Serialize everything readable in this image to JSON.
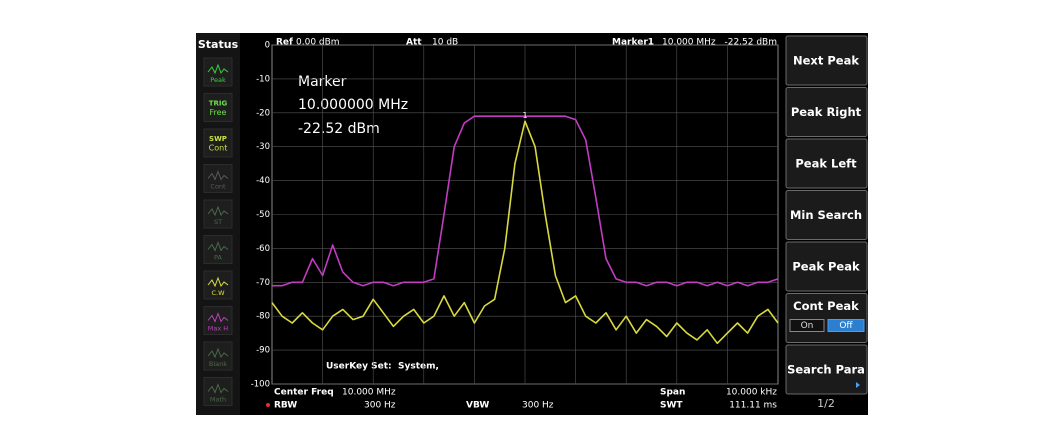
{
  "status": {
    "title": "Status",
    "items": [
      {
        "label": "Peak",
        "color": "#3ad13a"
      },
      {
        "top": "TRIG",
        "label": "Free",
        "color": "#6ee04a"
      },
      {
        "top": "SWP",
        "label": "Cont",
        "color": "#c8e040"
      },
      {
        "label": "Cont",
        "color": "#5a5a5a"
      },
      {
        "label": "ST",
        "color": "#4a6a4a"
      },
      {
        "label": "PA",
        "color": "#4a6a4a"
      },
      {
        "label": "C.W",
        "color": "#e0e040"
      },
      {
        "label": "Max H",
        "color": "#c040c0"
      },
      {
        "label": "Blank",
        "color": "#4a6a4a"
      },
      {
        "label": "Math",
        "color": "#4a6a4a"
      }
    ]
  },
  "header": {
    "ref_label": "Ref",
    "ref": "0.00 dBm",
    "att_label": "Att",
    "att": "10 dB",
    "marker_label": "Marker1",
    "marker_freq": "10.000 MHz",
    "marker_level": "-22.52 dBm"
  },
  "chart_data": {
    "type": "line",
    "ylim": [
      -100,
      0
    ],
    "yticks": [
      0,
      -10,
      -20,
      -30,
      -40,
      -50,
      -60,
      -70,
      -80,
      -90,
      -100
    ],
    "grid": true,
    "series": [
      {
        "color": "#c23cc2",
        "values": [
          -71,
          -71,
          -70,
          -70,
          -63,
          -68,
          -59,
          -67,
          -70,
          -71,
          -70,
          -70,
          -71,
          -70,
          -70,
          -70,
          -69,
          -50,
          -30,
          -23,
          -21,
          -21,
          -21,
          -21,
          -21,
          -21,
          -21,
          -21,
          -21,
          -21,
          -22,
          -28,
          -45,
          -63,
          -69,
          -70,
          -70,
          -71,
          -70,
          -70,
          -71,
          -70,
          -70,
          -71,
          -70,
          -71,
          -70,
          -71,
          -70,
          -70,
          -69
        ]
      },
      {
        "color": "#d8d840",
        "values": [
          -76,
          -80,
          -82,
          -79,
          -82,
          -84,
          -80,
          -78,
          -81,
          -80,
          -75,
          -79,
          -83,
          -80,
          -78,
          -82,
          -80,
          -74,
          -80,
          -76,
          -82,
          -77,
          -75,
          -60,
          -35,
          -22.5,
          -30,
          -50,
          -68,
          -76,
          -74,
          -80,
          -82,
          -79,
          -84,
          -80,
          -85,
          -81,
          -83,
          -86,
          -82,
          -85,
          -87,
          -84,
          -88,
          -85,
          -82,
          -85,
          -80,
          -78,
          -82
        ]
      }
    ],
    "marker_index": "1",
    "annotation": [
      "Marker",
      "10.000000 MHz",
      "-22.52 dBm"
    ],
    "userkey_label": "UserKey Set:",
    "userkey_value": "System,"
  },
  "footer": {
    "center_label": "Center Freq",
    "center": "10.000 MHz",
    "rbw_label": "RBW",
    "rbw": "300 Hz",
    "vbw_label": "VBW",
    "vbw": "300 Hz",
    "span_label": "Span",
    "span": "10.000 kHz",
    "swt_label": "SWT",
    "swt": "111.11 ms"
  },
  "softkeys": {
    "keys": [
      "Next Peak",
      "Peak Right",
      "Peak Left",
      "Min Search",
      "Peak Peak"
    ],
    "cont_peak": {
      "label": "Cont Peak",
      "options": [
        "On",
        "Off"
      ]
    },
    "search_para": "Search Para",
    "page": "1/2"
  }
}
